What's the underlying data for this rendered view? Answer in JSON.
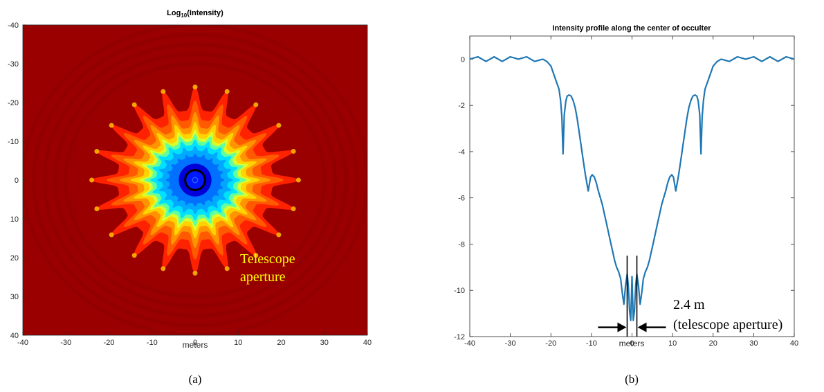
{
  "chart_data": [
    {
      "type": "heatmap",
      "panel_label": "(a)",
      "title_base": "Log",
      "title_sub": "10",
      "title_rest": "(Intensity)",
      "xlabel": "meters",
      "xlim": [
        -40,
        40
      ],
      "ylim": [
        -40,
        40
      ],
      "y_reversed": true,
      "xticks": [
        -40,
        -30,
        -20,
        -10,
        0,
        10,
        20,
        30,
        40
      ],
      "yticks": [
        -40,
        -30,
        -20,
        -10,
        0,
        10,
        20,
        30,
        40
      ],
      "colormap": "jet",
      "petal_count": 20,
      "annotation_lines": [
        "Telescope",
        "aperture"
      ],
      "annotation_color": "#ffff00"
    },
    {
      "type": "line",
      "panel_label": "(b)",
      "title": "Intensity profile along the center of occulter",
      "xlabel": "meters",
      "xlim": [
        -40,
        40
      ],
      "ylim": [
        -12,
        1
      ],
      "xticks": [
        -40,
        -30,
        -20,
        -10,
        0,
        10,
        20,
        30,
        40
      ],
      "yticks": [
        0,
        -2,
        -4,
        -6,
        -8,
        -10,
        -12
      ],
      "line_color": "#1f77b4",
      "x": [
        -40,
        -38,
        -36,
        -34,
        -32,
        -30,
        -28,
        -26,
        -24,
        -22,
        -21,
        -20,
        -19,
        -18,
        -17.6,
        -17.3,
        -17,
        -16.7,
        -16.3,
        -16,
        -15.5,
        -15,
        -14.5,
        -14,
        -13.5,
        -13,
        -12.5,
        -12,
        -11.5,
        -11,
        -10.8,
        -10.5,
        -10.2,
        -9.8,
        -9.3,
        -8.8,
        -8.3,
        -7.8,
        -7.3,
        -6.8,
        -6.3,
        -5.8,
        -5.3,
        -4.8,
        -4.3,
        -3.8,
        -3.3,
        -2.8,
        -2.4,
        -2.0,
        -1.6,
        -1.2,
        -0.9,
        -0.6,
        -0.3,
        0,
        0.3,
        0.6,
        0.9,
        1.2,
        1.6,
        2.0,
        2.4,
        2.8,
        3.3,
        3.8,
        4.3,
        4.8,
        5.3,
        5.8,
        6.3,
        6.8,
        7.3,
        7.8,
        8.3,
        8.8,
        9.3,
        9.8,
        10.2,
        10.5,
        10.8,
        11,
        11.5,
        12,
        12.5,
        13,
        13.5,
        14,
        14.5,
        15,
        15.5,
        16,
        16.3,
        16.7,
        17,
        17.3,
        17.6,
        18,
        19,
        20,
        21,
        22,
        24,
        26,
        28,
        30,
        32,
        34,
        36,
        38,
        40
      ],
      "y": [
        0,
        0.1,
        -0.1,
        0.1,
        -0.1,
        0.1,
        0,
        0.1,
        -0.1,
        0,
        -0.1,
        -0.3,
        -0.8,
        -1.3,
        -1.8,
        -2.5,
        -4.1,
        -2.4,
        -1.8,
        -1.6,
        -1.55,
        -1.6,
        -1.8,
        -2.1,
        -2.6,
        -3.2,
        -3.8,
        -4.4,
        -5.0,
        -5.5,
        -5.7,
        -5.4,
        -5.1,
        -5.0,
        -5.1,
        -5.35,
        -5.7,
        -6.0,
        -6.3,
        -6.7,
        -7.1,
        -7.5,
        -7.9,
        -8.3,
        -8.7,
        -9.0,
        -9.2,
        -9.5,
        -10.1,
        -10.6,
        -9.8,
        -9.3,
        -9.8,
        -10.9,
        -11.3,
        -9.4,
        -11.3,
        -10.9,
        -9.8,
        -9.3,
        -9.8,
        -10.6,
        -10.1,
        -9.5,
        -9.2,
        -9.0,
        -8.7,
        -8.3,
        -7.9,
        -7.5,
        -7.1,
        -6.7,
        -6.3,
        -6.0,
        -5.7,
        -5.35,
        -5.1,
        -5.0,
        -5.1,
        -5.4,
        -5.7,
        -5.5,
        -5.0,
        -4.4,
        -3.8,
        -3.2,
        -2.6,
        -2.1,
        -1.8,
        -1.6,
        -1.55,
        -1.6,
        -1.8,
        -2.4,
        -4.1,
        -2.5,
        -1.8,
        -1.3,
        -0.8,
        -0.3,
        -0.1,
        0,
        -0.1,
        0.1,
        0,
        0.1,
        -0.1,
        0.1,
        -0.1,
        0.1,
        0
      ],
      "aperture_markers_x": [
        -1.2,
        1.2
      ],
      "aperture_label_lines": [
        "2.4 m",
        "(telescope aperture)"
      ]
    }
  ]
}
